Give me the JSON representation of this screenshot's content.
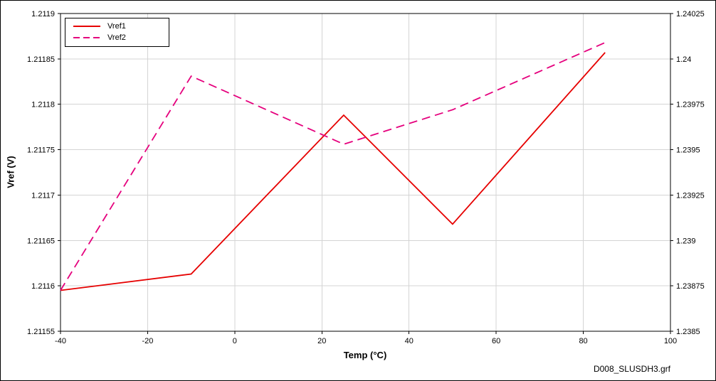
{
  "figure": {
    "footer": "D008_SLUSDH3.grf"
  },
  "chart_data": {
    "type": "line",
    "title": "",
    "xlabel": "Temp (°C)",
    "ylabel": "Vref (V)",
    "xlim": [
      -40,
      100
    ],
    "x_ticks": [
      "-40",
      "-20",
      "0",
      "20",
      "40",
      "60",
      "80",
      "100"
    ],
    "y_left_lim": [
      1.21155,
      1.2119
    ],
    "y_left_ticks": [
      "1.2119",
      "1.21185",
      "1.2118",
      "1.21175",
      "1.2117",
      "1.21165",
      "1.2116",
      "1.21155"
    ],
    "y_right_lim": [
      1.2385,
      1.24025
    ],
    "y_right_ticks": [
      "1.24025",
      "1.24",
      "1.23975",
      "1.2395",
      "1.23925",
      "1.239",
      "1.23875",
      "1.2385"
    ],
    "grid": true,
    "grid_color": "#d4d4d4",
    "axis_color": "#000000",
    "legend_position": "top-left",
    "series": [
      {
        "name": "Vref1",
        "axis": "left",
        "color": "#e60000",
        "style": "solid",
        "dash": null,
        "x": [
          -40,
          -10,
          25,
          50,
          85
        ],
        "y": [
          1.211595,
          1.211613,
          1.211788,
          1.211668,
          1.211857
        ]
      },
      {
        "name": "Vref2",
        "axis": "right",
        "color": "#e5007d",
        "style": "dashed",
        "dash": "12,7",
        "x": [
          -40,
          -10,
          25,
          50,
          85
        ],
        "y": [
          1.238725,
          1.239905,
          1.23953,
          1.23972,
          1.24009
        ]
      }
    ]
  }
}
